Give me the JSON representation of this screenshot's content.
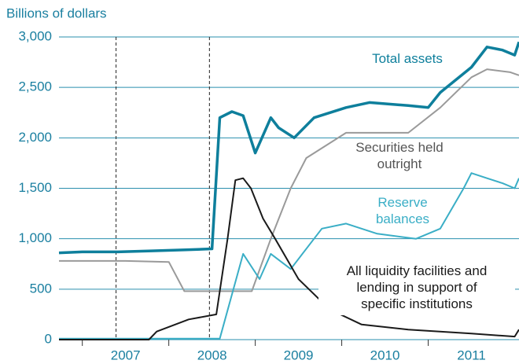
{
  "chart_data": {
    "type": "line",
    "axis_title": "Billions of dollars",
    "xlim": [
      2006.73,
      2012.05
    ],
    "xticks": [
      2007,
      2008,
      2009,
      2010,
      2011
    ],
    "ylim": [
      0,
      3000
    ],
    "yticks": [
      0,
      500,
      {
        "value": 1000,
        "label": "1,000"
      },
      {
        "value": 1500,
        "label": "1,500"
      },
      {
        "value": 2000,
        "label": "2,000"
      },
      {
        "value": 2500,
        "label": "2,500"
      },
      {
        "value": 3000,
        "label": "3,000"
      }
    ],
    "grid": true,
    "reference_lines": [
      2007.39,
      2008.47
    ],
    "series": [
      {
        "name": "Total assets",
        "color": "#0e7f9c",
        "x": [
          2006.73,
          2007.0,
          2007.41,
          2007.8,
          2008.2,
          2008.5,
          2008.59,
          2008.73,
          2008.86,
          2009.0,
          2009.18,
          2009.27,
          2009.45,
          2009.68,
          2010.05,
          2010.32,
          2010.77,
          2011.0,
          2011.14,
          2011.5,
          2011.68,
          2011.86,
          2012.0,
          2012.05
        ],
        "values": [
          860,
          870,
          870,
          880,
          890,
          900,
          2200,
          2260,
          2220,
          1850,
          2200,
          2100,
          2000,
          2200,
          2300,
          2350,
          2320,
          2300,
          2450,
          2700,
          2900,
          2870,
          2820,
          2950
        ]
      },
      {
        "name": "Securities held\noutright",
        "color": "#9a9a9a",
        "x": [
          2006.73,
          2007.5,
          2008.0,
          2008.18,
          2008.96,
          2009.18,
          2009.41,
          2009.59,
          2010.05,
          2010.77,
          2011.14,
          2011.5,
          2011.68,
          2011.95,
          2012.05
        ],
        "values": [
          780,
          780,
          770,
          480,
          480,
          1000,
          1500,
          1800,
          2050,
          2050,
          2300,
          2600,
          2680,
          2650,
          2620
        ]
      },
      {
        "name": "Reserve\nbalances",
        "color": "#3aaec6",
        "x": [
          2006.73,
          2008.59,
          2008.86,
          2009.05,
          2009.18,
          2009.41,
          2009.77,
          2010.05,
          2010.41,
          2010.86,
          2011.14,
          2011.41,
          2011.5,
          2011.68,
          2011.86,
          2012.0,
          2012.05
        ],
        "values": [
          10,
          10,
          850,
          600,
          850,
          700,
          1100,
          1150,
          1050,
          1000,
          1100,
          1500,
          1650,
          1600,
          1550,
          1500,
          1600
        ]
      },
      {
        "name": "All liquidity facilities and\nlending in support of\nspecific institutions",
        "color": "#1a1a1a",
        "x": [
          2006.73,
          2007.77,
          2007.86,
          2008.23,
          2008.55,
          2008.68,
          2008.77,
          2008.86,
          2008.95,
          2009.09,
          2009.23,
          2009.5,
          2009.86,
          2010.23,
          2010.77,
          2011.5,
          2012.0,
          2012.05
        ],
        "values": [
          0,
          0,
          80,
          200,
          250,
          1000,
          1580,
          1600,
          1500,
          1200,
          1000,
          600,
          300,
          150,
          100,
          60,
          30,
          100
        ]
      }
    ]
  }
}
